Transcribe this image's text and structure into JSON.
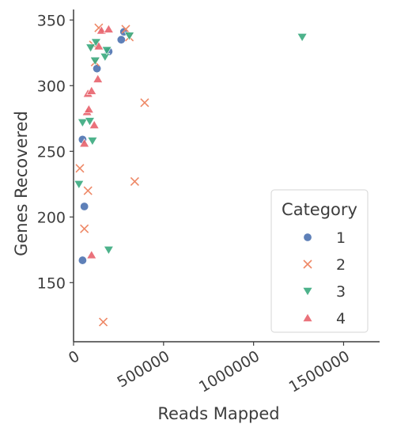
{
  "chart_data": {
    "type": "scatter",
    "xlabel": "Reads Mapped",
    "ylabel": "Genes Recovered",
    "xlim": [
      0,
      1700000
    ],
    "ylim": [
      105,
      358
    ],
    "xticks": [
      0,
      500000,
      1000000,
      1500000
    ],
    "xtick_labels": [
      "0",
      "500000",
      "1000000",
      "1500000"
    ],
    "yticks": [
      150,
      200,
      250,
      300,
      350
    ],
    "ytick_labels": [
      "150",
      "200",
      "250",
      "300",
      "350"
    ],
    "grid": false,
    "legend": {
      "title": "Category",
      "placement": "lower-right"
    },
    "series": [
      {
        "name": "1",
        "marker": "circle",
        "color": "#4c72b0",
        "points": [
          {
            "x": 50000,
            "y": 259
          },
          {
            "x": 60000,
            "y": 208
          },
          {
            "x": 50000,
            "y": 167
          },
          {
            "x": 130000,
            "y": 313
          },
          {
            "x": 195000,
            "y": 326
          },
          {
            "x": 265000,
            "y": 335
          },
          {
            "x": 280000,
            "y": 341
          }
        ]
      },
      {
        "name": "2",
        "marker": "x",
        "color": "#ee8866",
        "points": [
          {
            "x": 35000,
            "y": 237
          },
          {
            "x": 80000,
            "y": 220
          },
          {
            "x": 60000,
            "y": 191
          },
          {
            "x": 165000,
            "y": 120
          },
          {
            "x": 140000,
            "y": 344
          },
          {
            "x": 290000,
            "y": 343
          },
          {
            "x": 310000,
            "y": 337
          },
          {
            "x": 395000,
            "y": 287
          },
          {
            "x": 340000,
            "y": 227
          },
          {
            "x": 120000,
            "y": 318
          },
          {
            "x": 110000,
            "y": 331
          }
        ]
      },
      {
        "name": "3",
        "marker": "triangle-down",
        "color": "#3aaa7e",
        "points": [
          {
            "x": 30000,
            "y": 225
          },
          {
            "x": 50000,
            "y": 272
          },
          {
            "x": 90000,
            "y": 273
          },
          {
            "x": 105000,
            "y": 258
          },
          {
            "x": 95000,
            "y": 329
          },
          {
            "x": 125000,
            "y": 333
          },
          {
            "x": 175000,
            "y": 322
          },
          {
            "x": 185000,
            "y": 327
          },
          {
            "x": 195000,
            "y": 175
          },
          {
            "x": 310000,
            "y": 338
          },
          {
            "x": 1270000,
            "y": 337
          },
          {
            "x": 120000,
            "y": 319
          }
        ]
      },
      {
        "name": "4",
        "marker": "triangle-up",
        "color": "#e8636d",
        "points": [
          {
            "x": 60000,
            "y": 256
          },
          {
            "x": 75000,
            "y": 280
          },
          {
            "x": 85000,
            "y": 282
          },
          {
            "x": 80000,
            "y": 294
          },
          {
            "x": 100000,
            "y": 296
          },
          {
            "x": 115000,
            "y": 270
          },
          {
            "x": 135000,
            "y": 305
          },
          {
            "x": 140000,
            "y": 330
          },
          {
            "x": 155000,
            "y": 342
          },
          {
            "x": 195000,
            "y": 343
          },
          {
            "x": 100000,
            "y": 171
          }
        ]
      }
    ]
  }
}
